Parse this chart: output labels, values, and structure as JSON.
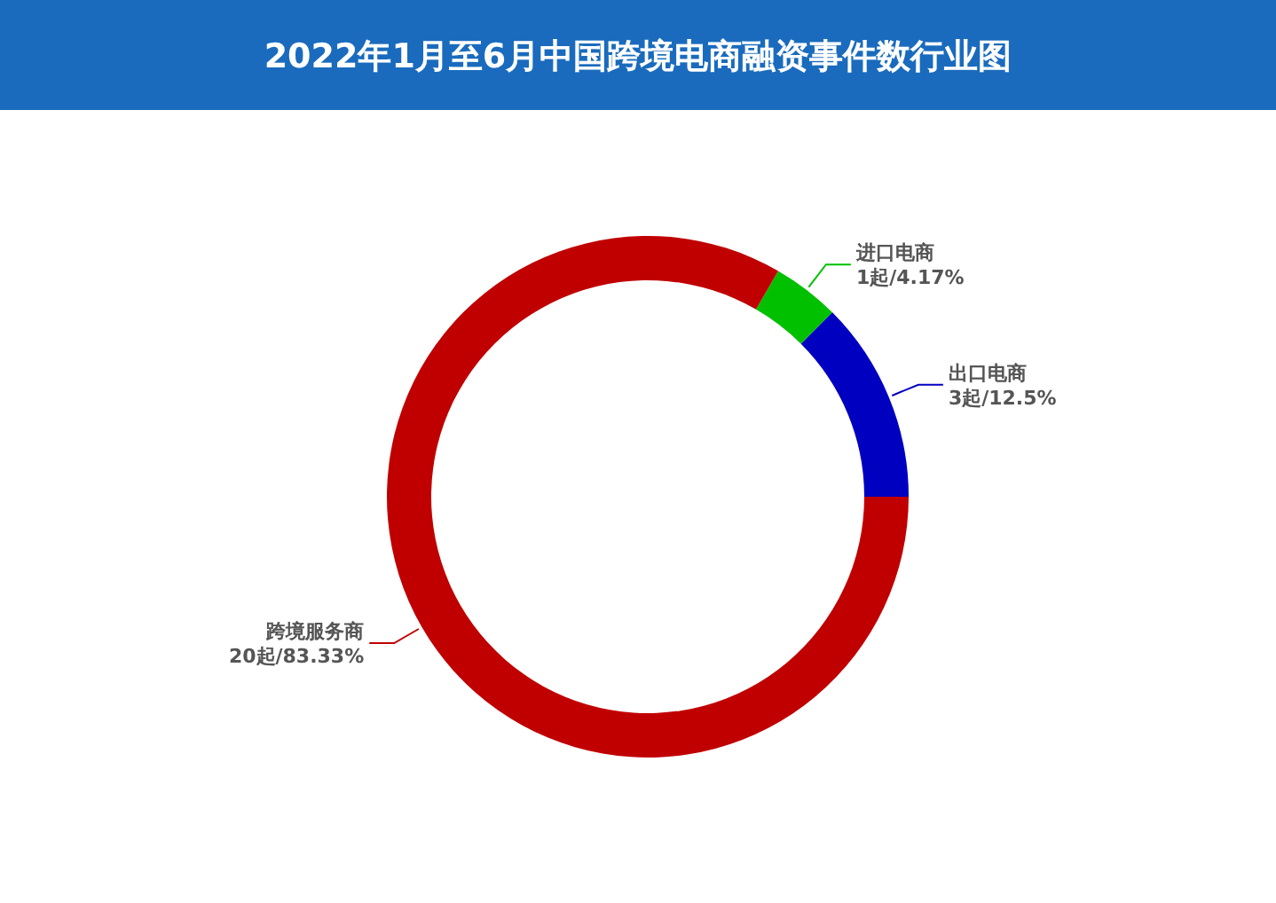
{
  "chart_data": {
    "type": "donut",
    "title": "2022年1月至6月中国跨境电商融资事件数行业图",
    "categories": [
      "出口电商",
      "进口电商",
      "跨境服务商"
    ],
    "values": [
      3,
      1,
      20
    ],
    "colors": [
      "#0000c0",
      "#00c000",
      "#c00000"
    ],
    "value_labels": [
      "3起/12.5%",
      "1起/4.17%",
      "20起/83.33%"
    ]
  }
}
